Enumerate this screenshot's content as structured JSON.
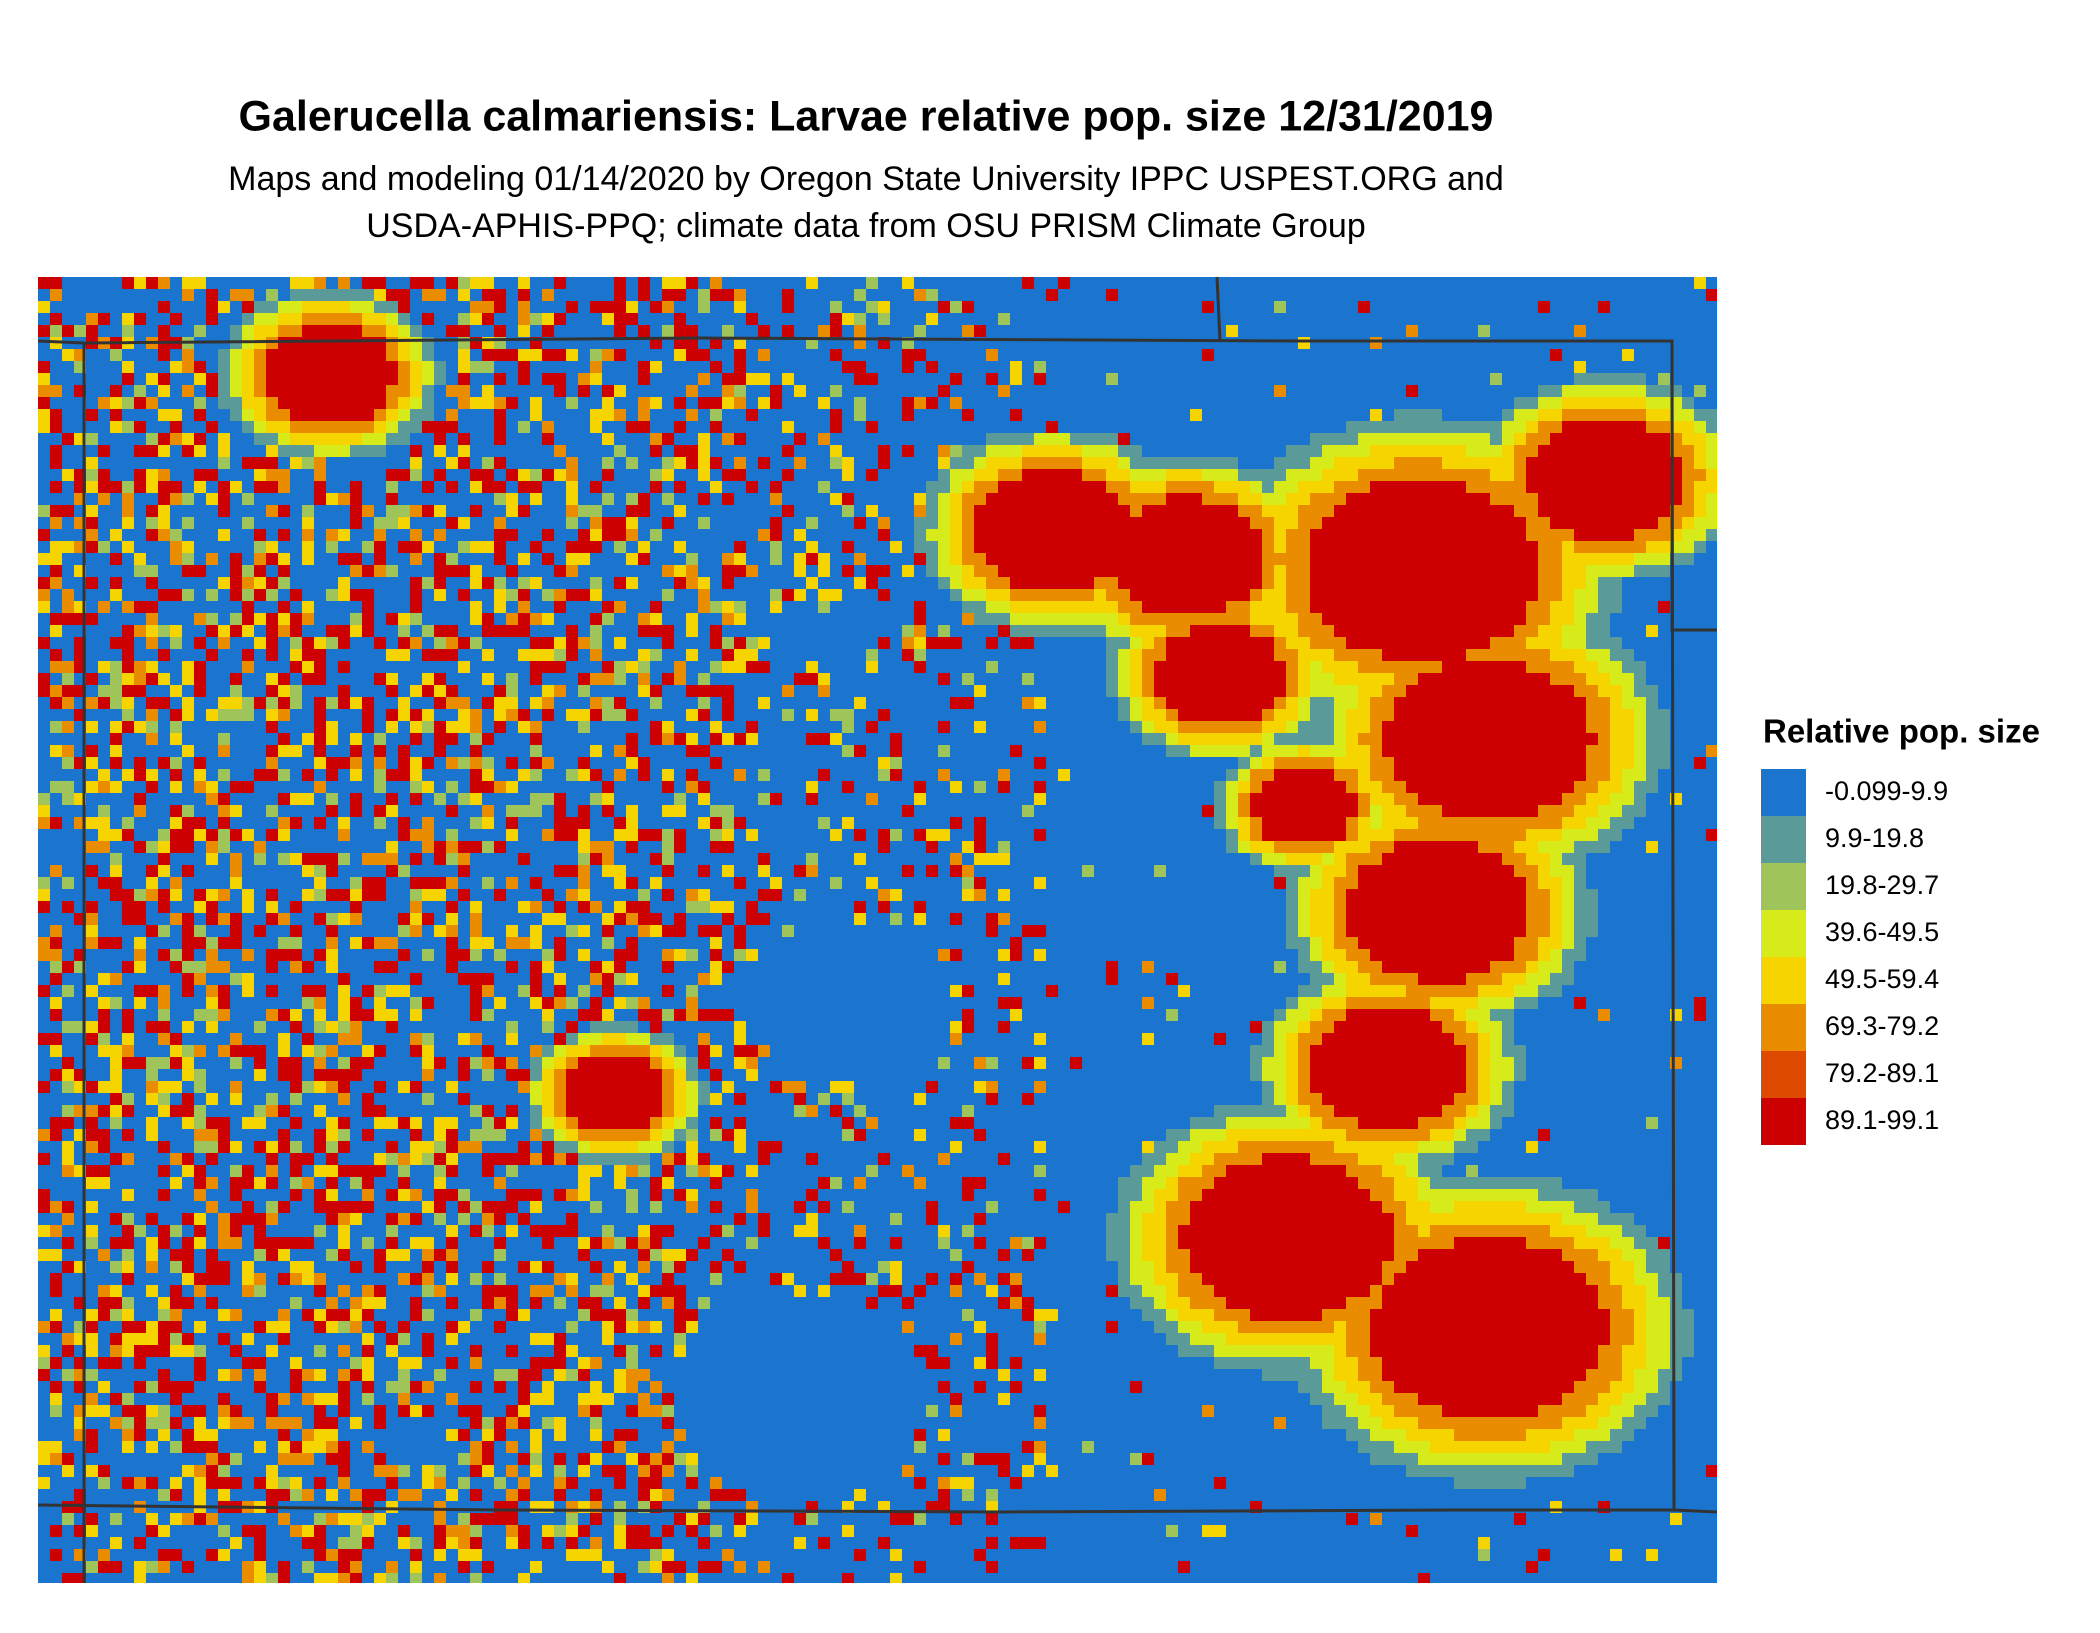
{
  "title": "Galerucella calmariensis: Larvae relative pop. size 12/31/2019",
  "subtitle": [
    "Maps and modeling 01/14/2020 by Oregon State University IPPC USPEST.ORG and",
    "USDA-APHIS-PPQ; climate data from OSU PRISM Climate Group"
  ],
  "legend": {
    "title": "Relative pop. size",
    "items": [
      {
        "label": "-0.099-9.9",
        "color": "#1b75cf"
      },
      {
        "label": "9.9-19.8",
        "color": "#5a9a99"
      },
      {
        "label": "19.8-29.7",
        "color": "#9fc55a"
      },
      {
        "label": "39.6-49.5",
        "color": "#d7ea1a"
      },
      {
        "label": "49.5-59.4",
        "color": "#f5d400"
      },
      {
        "label": "69.3-79.2",
        "color": "#ea8c00"
      },
      {
        "label": "79.2-89.1",
        "color": "#dd4a00"
      },
      {
        "label": "89.1-99.1",
        "color": "#cc0000"
      }
    ]
  }
}
